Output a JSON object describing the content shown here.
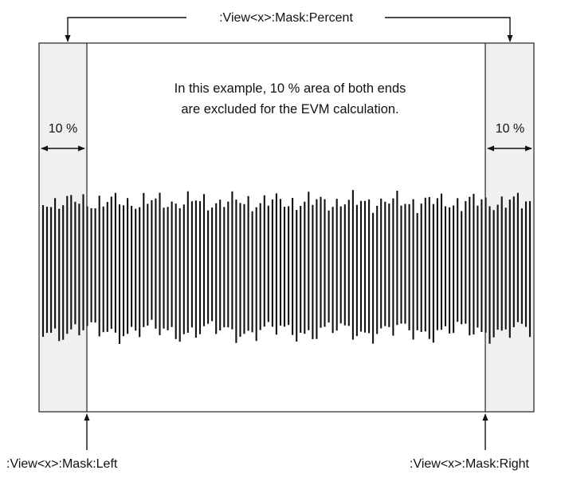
{
  "diagram": {
    "top_label": ":View<x>:Mask:Percent",
    "note_line1": "In this example, 10 % area of both ends",
    "note_line2": "are excluded for the EVM calculation.",
    "left_percent": "10 %",
    "right_percent": "10 %",
    "left_label": ":View<x>:Mask:Left",
    "right_label": ":View<x>:Mask:Right",
    "mask_fraction_each_end": 0.1,
    "colors": {
      "masked_area": "#f0f0f0",
      "frame": "#222222",
      "signal": "#111111"
    }
  }
}
